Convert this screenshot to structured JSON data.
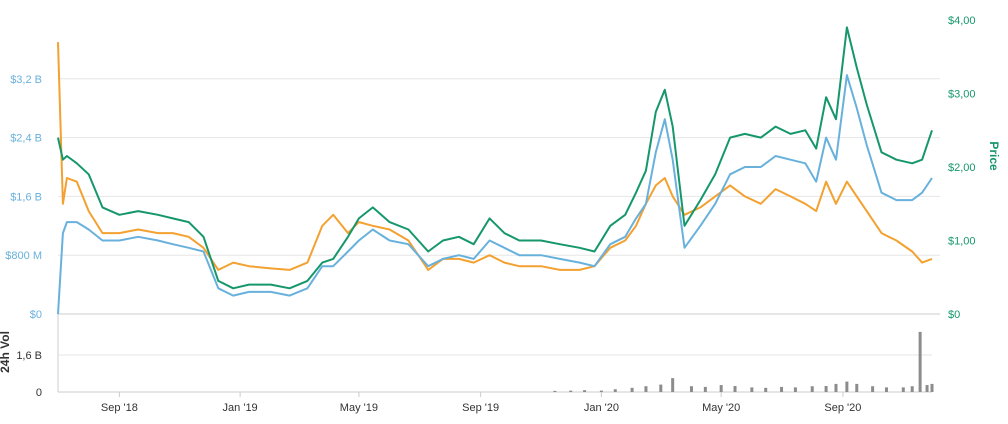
{
  "chart_data": {
    "type": "line",
    "title": "",
    "grid": true,
    "legend": "none",
    "colors": {
      "market_cap": "#68b1dc",
      "price": "#16976b",
      "volume_24h": "#f3a130",
      "volume_bars": "#8c8c8c",
      "grid": "#e6e6e6",
      "baseline": "#cccccc",
      "tick_text": "#333333"
    },
    "x_axis": {
      "range": [
        "2018-07-01",
        "2020-11-30"
      ],
      "ticks": [
        {
          "date": "2018-09-01",
          "label": "Sep '18"
        },
        {
          "date": "2019-01-01",
          "label": "Jan '19"
        },
        {
          "date": "2019-05-01",
          "label": "May '19"
        },
        {
          "date": "2019-09-01",
          "label": "Sep '19"
        },
        {
          "date": "2020-01-01",
          "label": "Jan '20"
        },
        {
          "date": "2020-05-01",
          "label": "May '20"
        },
        {
          "date": "2020-09-01",
          "label": "Sep '20"
        }
      ]
    },
    "y_left": {
      "ylim": [
        0,
        4000000000
      ],
      "ticks": [
        {
          "value": 0,
          "label": "$0"
        },
        {
          "value": 800000000,
          "label": "$800 M"
        },
        {
          "value": 1600000000,
          "label": "$1,6 B"
        },
        {
          "value": 2400000000,
          "label": "$2,4 B"
        },
        {
          "value": 3200000000,
          "label": "$3,2 B"
        }
      ]
    },
    "y_right": {
      "label": "Price",
      "ylim": [
        0,
        4.0
      ],
      "ticks": [
        {
          "value": 0,
          "label": "$0"
        },
        {
          "value": 1,
          "label": "$1,00"
        },
        {
          "value": 2,
          "label": "$2,00"
        },
        {
          "value": 3,
          "label": "$3,00"
        },
        {
          "value": 4,
          "label": "$4,00"
        }
      ]
    },
    "volume_axis": {
      "label": "24h Vol",
      "ylim": [
        0,
        3200000000
      ],
      "ticks": [
        {
          "value": 0,
          "label": "0"
        },
        {
          "value": 1600000000,
          "label": "1,6 B"
        }
      ]
    },
    "x": [
      "2018-07-01",
      "2018-07-06",
      "2018-07-10",
      "2018-07-20",
      "2018-08-01",
      "2018-08-15",
      "2018-09-01",
      "2018-09-20",
      "2018-10-10",
      "2018-10-25",
      "2018-11-10",
      "2018-11-25",
      "2018-12-10",
      "2018-12-25",
      "2019-01-10",
      "2019-02-01",
      "2019-02-20",
      "2019-03-10",
      "2019-03-25",
      "2019-04-05",
      "2019-04-20",
      "2019-05-01",
      "2019-05-15",
      "2019-06-01",
      "2019-06-20",
      "2019-07-10",
      "2019-07-25",
      "2019-08-10",
      "2019-08-25",
      "2019-09-10",
      "2019-09-25",
      "2019-10-10",
      "2019-11-01",
      "2019-11-20",
      "2019-12-10",
      "2019-12-25",
      "2020-01-10",
      "2020-01-25",
      "2020-02-05",
      "2020-02-15",
      "2020-02-25",
      "2020-03-05",
      "2020-03-13",
      "2020-03-25",
      "2020-04-10",
      "2020-04-25",
      "2020-05-10",
      "2020-05-25",
      "2020-06-10",
      "2020-06-25",
      "2020-07-10",
      "2020-07-25",
      "2020-08-05",
      "2020-08-15",
      "2020-08-25",
      "2020-09-05",
      "2020-09-15",
      "2020-09-25",
      "2020-10-10",
      "2020-10-25",
      "2020-11-10",
      "2020-11-20",
      "2020-11-30"
    ],
    "series": [
      {
        "key": "market_cap",
        "axis": "left",
        "values": [
          0,
          1100000000,
          1250000000,
          1250000000,
          1150000000,
          1000000000,
          1000000000,
          1050000000,
          1000000000,
          950000000,
          900000000,
          850000000,
          350000000,
          250000000,
          300000000,
          300000000,
          250000000,
          350000000,
          650000000,
          650000000,
          850000000,
          1000000000,
          1150000000,
          1000000000,
          950000000,
          650000000,
          750000000,
          800000000,
          750000000,
          1000000000,
          900000000,
          800000000,
          800000000,
          750000000,
          700000000,
          650000000,
          950000000,
          1050000000,
          1300000000,
          1500000000,
          2200000000,
          2650000000,
          2100000000,
          900000000,
          1200000000,
          1500000000,
          1900000000,
          2000000000,
          2000000000,
          2150000000,
          2100000000,
          2050000000,
          1800000000,
          2400000000,
          2100000000,
          3250000000,
          2800000000,
          2300000000,
          1650000000,
          1550000000,
          1550000000,
          1650000000,
          1850000000
        ]
      },
      {
        "key": "price",
        "axis": "right",
        "values": [
          2.4,
          2.1,
          2.15,
          2.05,
          1.9,
          1.45,
          1.35,
          1.4,
          1.35,
          1.3,
          1.25,
          1.05,
          0.45,
          0.35,
          0.4,
          0.4,
          0.35,
          0.45,
          0.7,
          0.75,
          1.05,
          1.3,
          1.45,
          1.25,
          1.15,
          0.85,
          1.0,
          1.05,
          0.95,
          1.3,
          1.1,
          1.0,
          1.0,
          0.95,
          0.9,
          0.85,
          1.2,
          1.35,
          1.65,
          1.95,
          2.75,
          3.05,
          2.55,
          1.2,
          1.55,
          1.9,
          2.4,
          2.45,
          2.4,
          2.55,
          2.45,
          2.5,
          2.25,
          2.95,
          2.65,
          3.9,
          3.35,
          2.85,
          2.2,
          2.1,
          2.05,
          2.1,
          2.5
        ]
      },
      {
        "key": "volume_24h",
        "axis": "left",
        "values": [
          3700000000,
          1500000000,
          1850000000,
          1800000000,
          1400000000,
          1100000000,
          1100000000,
          1150000000,
          1100000000,
          1100000000,
          1050000000,
          900000000,
          600000000,
          700000000,
          650000000,
          620000000,
          600000000,
          700000000,
          1200000000,
          1350000000,
          1100000000,
          1250000000,
          1200000000,
          1150000000,
          1000000000,
          600000000,
          750000000,
          750000000,
          700000000,
          800000000,
          700000000,
          650000000,
          650000000,
          600000000,
          600000000,
          650000000,
          900000000,
          1000000000,
          1200000000,
          1500000000,
          1750000000,
          1850000000,
          1600000000,
          1350000000,
          1450000000,
          1600000000,
          1750000000,
          1600000000,
          1500000000,
          1700000000,
          1600000000,
          1500000000,
          1400000000,
          1800000000,
          1500000000,
          1800000000,
          1600000000,
          1400000000,
          1100000000,
          1000000000,
          850000000,
          700000000,
          750000000
        ]
      }
    ],
    "volume_bars": {
      "x": [
        "2019-11-15",
        "2019-12-01",
        "2019-12-15",
        "2020-01-01",
        "2020-01-15",
        "2020-02-01",
        "2020-02-15",
        "2020-03-01",
        "2020-03-13",
        "2020-04-01",
        "2020-04-15",
        "2020-05-01",
        "2020-05-15",
        "2020-06-01",
        "2020-06-15",
        "2020-07-01",
        "2020-07-15",
        "2020-08-01",
        "2020-08-15",
        "2020-08-25",
        "2020-09-05",
        "2020-09-15",
        "2020-10-01",
        "2020-10-15",
        "2020-11-01",
        "2020-11-10",
        "2020-11-18",
        "2020-11-25",
        "2020-11-30"
      ],
      "values": [
        50000000,
        60000000,
        80000000,
        60000000,
        120000000,
        180000000,
        250000000,
        320000000,
        600000000,
        250000000,
        220000000,
        300000000,
        260000000,
        200000000,
        180000000,
        220000000,
        200000000,
        250000000,
        260000000,
        350000000,
        450000000,
        350000000,
        250000000,
        200000000,
        200000000,
        250000000,
        2600000000,
        300000000,
        350000000
      ]
    }
  }
}
